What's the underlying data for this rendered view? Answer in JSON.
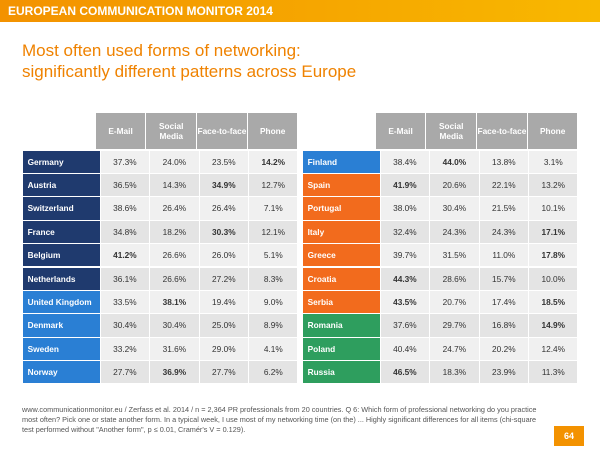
{
  "header": {
    "title": "EUROPEAN COMMUNICATION MONITOR 2014"
  },
  "title": [
    "Most often used forms of networking:",
    "significantly different patterns across Europe"
  ],
  "table": {
    "columns": [
      "E-Mail",
      "Social Media",
      "Face-to-face",
      "Phone"
    ],
    "left": [
      {
        "country": "Germany",
        "color": "#1f3a6e",
        "cells": [
          "37.3%",
          "24.0%",
          "23.5%",
          "14.2%"
        ],
        "bold": [
          3
        ]
      },
      {
        "country": "Austria",
        "color": "#1f3a6e",
        "cells": [
          "36.5%",
          "14.3%",
          "34.9%",
          "12.7%"
        ],
        "bold": [
          2
        ]
      },
      {
        "country": "Switzerland",
        "color": "#1f3a6e",
        "cells": [
          "38.6%",
          "26.4%",
          "26.4%",
          "7.1%"
        ],
        "bold": []
      },
      {
        "country": "France",
        "color": "#1f3a6e",
        "cells": [
          "34.8%",
          "18.2%",
          "30.3%",
          "12.1%"
        ],
        "bold": [
          2
        ]
      },
      {
        "country": "Belgium",
        "color": "#1f3a6e",
        "cells": [
          "41.2%",
          "26.6%",
          "26.0%",
          "5.1%"
        ],
        "bold": [
          0
        ]
      },
      {
        "country": "Netherlands",
        "color": "#1f3a6e",
        "cells": [
          "36.1%",
          "26.6%",
          "27.2%",
          "8.3%"
        ],
        "bold": []
      },
      {
        "country": "United Kingdom",
        "color": "#2a7fd4",
        "cells": [
          "33.5%",
          "38.1%",
          "19.4%",
          "9.0%"
        ],
        "bold": [
          1
        ]
      },
      {
        "country": "Denmark",
        "color": "#2a7fd4",
        "cells": [
          "30.4%",
          "30.4%",
          "25.0%",
          "8.9%"
        ],
        "bold": []
      },
      {
        "country": "Sweden",
        "color": "#2a7fd4",
        "cells": [
          "33.2%",
          "31.6%",
          "29.0%",
          "4.1%"
        ],
        "bold": []
      },
      {
        "country": "Norway",
        "color": "#2a7fd4",
        "cells": [
          "27.7%",
          "36.9%",
          "27.7%",
          "6.2%"
        ],
        "bold": [
          1
        ]
      }
    ],
    "right": [
      {
        "country": "Finland",
        "color": "#2a7fd4",
        "cells": [
          "38.4%",
          "44.0%",
          "13.8%",
          "3.1%"
        ],
        "bold": [
          1
        ]
      },
      {
        "country": "Spain",
        "color": "#f26b1d",
        "cells": [
          "41.9%",
          "20.6%",
          "22.1%",
          "13.2%"
        ],
        "bold": [
          0
        ]
      },
      {
        "country": "Portugal",
        "color": "#f26b1d",
        "cells": [
          "38.0%",
          "30.4%",
          "21.5%",
          "10.1%"
        ],
        "bold": []
      },
      {
        "country": "Italy",
        "color": "#f26b1d",
        "cells": [
          "32.4%",
          "24.3%",
          "24.3%",
          "17.1%"
        ],
        "bold": [
          3
        ]
      },
      {
        "country": "Greece",
        "color": "#f26b1d",
        "cells": [
          "39.7%",
          "31.5%",
          "11.0%",
          "17.8%"
        ],
        "bold": [
          3
        ]
      },
      {
        "country": "Croatia",
        "color": "#f26b1d",
        "cells": [
          "44.3%",
          "28.6%",
          "15.7%",
          "10.0%"
        ],
        "bold": [
          0
        ]
      },
      {
        "country": "Serbia",
        "color": "#f26b1d",
        "cells": [
          "43.5%",
          "20.7%",
          "17.4%",
          "18.5%"
        ],
        "bold": [
          0,
          3
        ]
      },
      {
        "country": "Romania",
        "color": "#2e9e5e",
        "cells": [
          "37.6%",
          "29.7%",
          "16.8%",
          "14.9%"
        ],
        "bold": [
          3
        ]
      },
      {
        "country": "Poland",
        "color": "#2e9e5e",
        "cells": [
          "40.4%",
          "24.7%",
          "20.2%",
          "12.4%"
        ],
        "bold": []
      },
      {
        "country": "Russia",
        "color": "#2e9e5e",
        "cells": [
          "46.5%",
          "18.3%",
          "23.9%",
          "11.3%"
        ],
        "bold": [
          0
        ]
      }
    ]
  },
  "footer": {
    "note": "www.communicationmonitor.eu / Zerfass et al. 2014 / n =  2,364 PR professionals from 20 countries. Q 6: Which form of professional networking do you practice most often? Pick one or state another form. In a typical week, I use most of my networking time (on the) ... Highly significant differences for all items (chi-square test performed without \"Another form\", p ≤ 0.01, Cramér's V = 0.129).",
    "page": "64"
  }
}
